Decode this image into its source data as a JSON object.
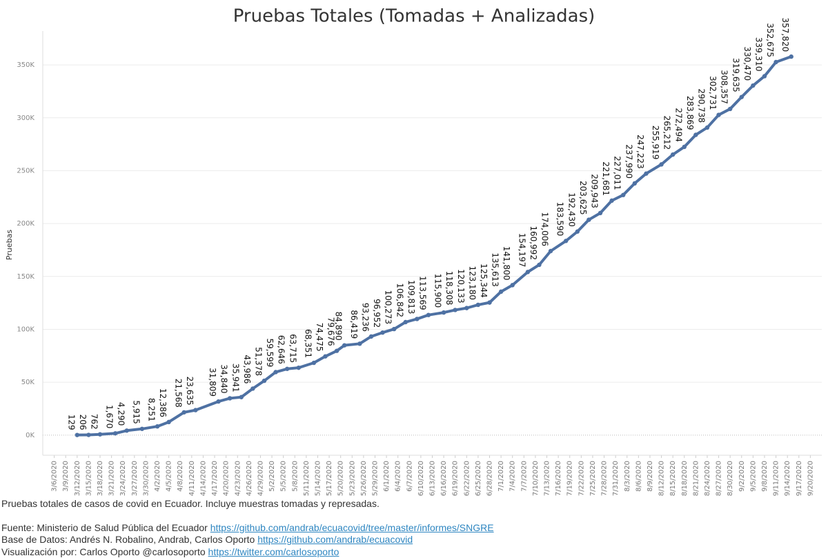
{
  "chart_data": {
    "type": "line",
    "title": "Pruebas Totales (Tomadas + Analizadas)",
    "y_label": "Pruebas",
    "x": [
      "3/12/2020",
      "3/15/2020",
      "3/18/2020",
      "3/22/2020",
      "3/25/2020",
      "3/29/2020",
      "4/2/2020",
      "4/5/2020",
      "4/9/2020",
      "4/12/2020",
      "4/18/2020",
      "4/21/2020",
      "4/24/2020",
      "4/27/2020",
      "4/30/2020",
      "5/3/2020",
      "5/6/2020",
      "5/9/2020",
      "5/13/2020",
      "5/16/2020",
      "5/19/2020",
      "5/21/2020",
      "5/25/2020",
      "5/28/2020",
      "5/31/2020",
      "6/3/2020",
      "6/6/2020",
      "6/9/2020",
      "6/12/2020",
      "6/16/2020",
      "6/19/2020",
      "6/22/2020",
      "6/25/2020",
      "6/28/2020",
      "7/1/2020",
      "7/4/2020",
      "7/8/2020",
      "7/11/2020",
      "7/14/2020",
      "7/18/2020",
      "7/21/2020",
      "7/24/2020",
      "7/27/2020",
      "7/30/2020",
      "8/2/2020",
      "8/5/2020",
      "8/8/2020",
      "8/12/2020",
      "8/15/2020",
      "8/18/2020",
      "8/21/2020",
      "8/24/2020",
      "8/27/2020",
      "8/30/2020",
      "9/2/2020",
      "9/5/2020",
      "9/8/2020",
      "9/11/2020",
      "9/15/2020"
    ],
    "series": [
      {
        "name": "Pruebas",
        "color": "#4e71a3",
        "values": [
          129,
          206,
          762,
          1670,
          4290,
          5915,
          8251,
          12386,
          21568,
          23635,
          31809,
          34840,
          35941,
          43986,
          51378,
          59599,
          62646,
          63715,
          68351,
          74475,
          79676,
          84890,
          86419,
          93236,
          96952,
          100273,
          106842,
          109813,
          113569,
          115900,
          118308,
          120133,
          123180,
          125344,
          135613,
          141800,
          154197,
          160992,
          174006,
          183590,
          192430,
          203625,
          209943,
          221681,
          227011,
          237990,
          247223,
          255919,
          265212,
          272494,
          283869,
          290738,
          302731,
          308357,
          319635,
          330470,
          339310,
          352675,
          357820
        ],
        "value_labels": [
          "129",
          "206",
          "762",
          "1,670",
          "4,290",
          "5,915",
          "8,251",
          "12,386",
          "21,568",
          "23,635",
          "31,809",
          "34,840",
          "35,941",
          "43,986",
          "51,378",
          "59,599",
          "62,646",
          "63,715",
          "68,351",
          "74,475",
          "79,676",
          "84,890",
          "86,419",
          "93,236",
          "96,952",
          "100,273",
          "106,842",
          "109,813",
          "113,569",
          "115,900",
          "118,308",
          "120,133",
          "123,180",
          "125,344",
          "135,613",
          "141,800",
          "154,197",
          "160,992",
          "174,006",
          "183,590",
          "192,430",
          "203,625",
          "209,943",
          "221,681",
          "227,011",
          "237,990",
          "247,223",
          "255,919",
          "265,212",
          "272,494",
          "283,869",
          "290,738",
          "302,731",
          "308,357",
          "319,635",
          "330,470",
          "339,310",
          "352,675",
          "357,820"
        ]
      }
    ],
    "xlim": [
      "3/3/2020",
      "9/23/2020"
    ],
    "xticks": [
      "3/6/2020",
      "3/9/2020",
      "3/12/2020",
      "3/15/2020",
      "3/18/2020",
      "3/21/2020",
      "3/24/2020",
      "3/27/2020",
      "3/30/2020",
      "4/2/2020",
      "4/5/2020",
      "4/8/2020",
      "4/11/2020",
      "4/14/2020",
      "4/17/2020",
      "4/20/2020",
      "4/23/2020",
      "4/26/2020",
      "4/29/2020",
      "5/2/2020",
      "5/5/2020",
      "5/8/2020",
      "5/11/2020",
      "5/14/2020",
      "5/17/2020",
      "5/20/2020",
      "5/23/2020",
      "5/26/2020",
      "5/29/2020",
      "6/1/2020",
      "6/4/2020",
      "6/7/2020",
      "6/10/2020",
      "6/13/2020",
      "6/16/2020",
      "6/19/2020",
      "6/22/2020",
      "6/25/2020",
      "6/28/2020",
      "7/1/2020",
      "7/4/2020",
      "7/7/2020",
      "7/10/2020",
      "7/13/2020",
      "7/16/2020",
      "7/19/2020",
      "7/22/2020",
      "7/25/2020",
      "7/28/2020",
      "7/31/2020",
      "8/3/2020",
      "8/6/2020",
      "8/9/2020",
      "8/12/2020",
      "8/15/2020",
      "8/18/2020",
      "8/21/2020",
      "8/24/2020",
      "8/27/2020",
      "8/30/2020",
      "9/2/2020",
      "9/5/2020",
      "9/8/2020",
      "9/11/2020",
      "9/14/2020",
      "9/17/2020",
      "9/20/2020"
    ],
    "ylim": [
      -19000,
      382000
    ],
    "yticks": [
      {
        "value": 0,
        "label": "0K"
      },
      {
        "value": 50000,
        "label": "50K"
      },
      {
        "value": 100000,
        "label": "100K"
      },
      {
        "value": 150000,
        "label": "150K"
      },
      {
        "value": 200000,
        "label": "200K"
      },
      {
        "value": 250000,
        "label": "250K"
      },
      {
        "value": 300000,
        "label": "300K"
      },
      {
        "value": 350000,
        "label": "350K"
      }
    ],
    "grid": true
  },
  "footer": {
    "description": "Pruebas totales de casos de covid en Ecuador. Incluye muestras tomadas y represadas.",
    "lines": [
      {
        "text": "Fuente: Ministerio de Salud Pública del Ecuador",
        "link": "https://github.com/andrab/ecuacovid/tree/master/informes/SNGRE"
      },
      {
        "text": "Base de Datos: Andrés N. Robalino, Andrab, Carlos Oporto",
        "link": "https://github.com/andrab/ecuacovid"
      },
      {
        "text": "Visualización por: Carlos Oporto @carlosoporto",
        "link": "https://twitter.com/carlosoporto"
      }
    ]
  }
}
